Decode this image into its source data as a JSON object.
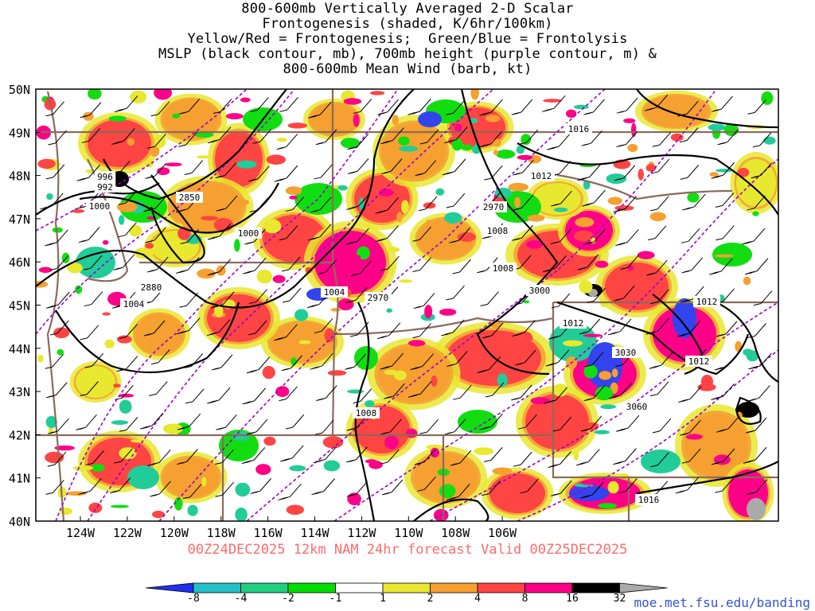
{
  "title": {
    "lines": [
      "800-600mb Vertically Averaged 2-D Scalar",
      "Frontogenesis (shaded, K/6hr/100km)",
      "Yellow/Red = Frontogenesis;  Green/Blue = Frontolysis",
      "MSLP (black contour, mb), 700mb height (purple contour, m) &",
      "800-600mb Mean Wind (barb, kt)"
    ]
  },
  "map": {
    "lat_labels": [
      "50N",
      "49N",
      "48N",
      "47N",
      "46N",
      "45N",
      "44N",
      "43N",
      "42N",
      "41N",
      "40N"
    ],
    "lon_labels": [
      "124W",
      "122W",
      "120W",
      "118W",
      "116W",
      "114W",
      "112W",
      "110W",
      "108W",
      "106W"
    ],
    "colors": {
      "border": "#8b6b5a",
      "mslp": "#000000",
      "height": "#9900cc",
      "frame": "#000000"
    },
    "mslp_labels": [
      "1016",
      "1012",
      "1008",
      "1004",
      "1000",
      "996",
      "992",
      "1000",
      "1004",
      "1008",
      "1008",
      "1012",
      "1012",
      "1012",
      "1016"
    ],
    "height_labels": [
      "2850",
      "2880",
      "2970",
      "2970",
      "3000",
      "3030",
      "3060"
    ],
    "shading_colors": {
      "frontolysis_strong": "#3344ee",
      "frontolysis_mod": "#22cc99",
      "frontolysis_weak": "#11dd11",
      "frontogenesis_weak": "#e8e830",
      "frontogenesis_mod": "#f5a030",
      "frontogenesis_strong": "#ff4444",
      "frontogenesis_very": "#ff0088",
      "frontogenesis_extreme": "#000000",
      "frontogenesis_max": "#aaaaaa"
    }
  },
  "footer": {
    "forecast_label": "00Z24DEC2025 12km NAM 24hr forecast Valid 00Z25DEC2025"
  },
  "colorbar": {
    "labels": [
      "-8",
      "-4",
      "-2",
      "-1",
      "1",
      "2",
      "4",
      "8",
      "16",
      "32"
    ],
    "colors": [
      "#2030ee",
      "#22c0c8",
      "#20d080",
      "#00dd00",
      "#ffffff",
      "#e8e830",
      "#f5a030",
      "#ff4444",
      "#ff0088",
      "#000000",
      "#aaaaaa"
    ]
  },
  "credit": "moe.met.fsu.edu/banding"
}
